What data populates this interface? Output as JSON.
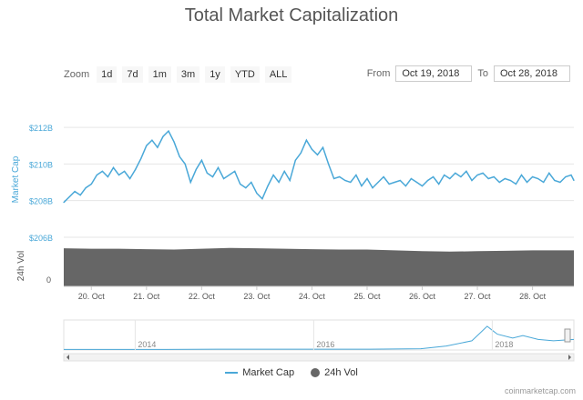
{
  "title": "Total Market Capitalization",
  "zoom": {
    "label": "Zoom",
    "buttons": [
      "1d",
      "7d",
      "1m",
      "3m",
      "1y",
      "YTD",
      "ALL"
    ]
  },
  "range": {
    "from_label": "From",
    "from_value": "Oct 19, 2018",
    "to_label": "To",
    "to_value": "Oct 28, 2018"
  },
  "legend": {
    "market_cap": "Market Cap",
    "vol": "24h Vol"
  },
  "credit": "coinmarketcap.com",
  "colors": {
    "market_cap": "#4aa8d8",
    "volume": "#666666",
    "grid": "#e6e6e6",
    "axis_text": "#4aa8d8"
  },
  "chart_data": {
    "type": "line",
    "title": "Total Market Capitalization",
    "xlabel": "",
    "ylabel": "Market Cap",
    "ylabel2": "24h Vol",
    "x_ticks": [
      "20. Oct",
      "21. Oct",
      "22. Oct",
      "23. Oct",
      "24. Oct",
      "25. Oct",
      "26. Oct",
      "27. Oct",
      "28. Oct"
    ],
    "y_ticks": [
      "$212B",
      "$210B",
      "$208B",
      "$206B"
    ],
    "y_tick_values": [
      212,
      210,
      208,
      206
    ],
    "ylim": [
      205.8,
      212.5
    ],
    "vol_ticks": [
      "0"
    ],
    "x_range": [
      19.5,
      28.75
    ],
    "series": [
      {
        "name": "Market Cap",
        "x": [
          19.5,
          19.6,
          19.7,
          19.8,
          19.9,
          20.0,
          20.1,
          20.2,
          20.3,
          20.4,
          20.5,
          20.6,
          20.7,
          20.8,
          20.9,
          21.0,
          21.1,
          21.2,
          21.3,
          21.4,
          21.5,
          21.6,
          21.7,
          21.8,
          21.9,
          22.0,
          22.1,
          22.2,
          22.3,
          22.4,
          22.5,
          22.6,
          22.7,
          22.8,
          22.9,
          23.0,
          23.1,
          23.2,
          23.3,
          23.4,
          23.5,
          23.6,
          23.7,
          23.8,
          23.9,
          24.0,
          24.1,
          24.2,
          24.3,
          24.4,
          24.5,
          24.6,
          24.7,
          24.8,
          24.9,
          25.0,
          25.1,
          25.2,
          25.3,
          25.4,
          25.5,
          25.6,
          25.7,
          25.8,
          25.9,
          26.0,
          26.1,
          26.2,
          26.3,
          26.4,
          26.5,
          26.6,
          26.7,
          26.8,
          26.9,
          27.0,
          27.1,
          27.2,
          27.3,
          27.4,
          27.5,
          27.6,
          27.7,
          27.8,
          27.9,
          28.0,
          28.1,
          28.2,
          28.3,
          28.4,
          28.5,
          28.6,
          28.7,
          28.75
        ],
        "values": [
          207.9,
          208.2,
          208.5,
          208.3,
          208.7,
          208.9,
          209.4,
          209.6,
          209.3,
          209.8,
          209.4,
          209.6,
          209.2,
          209.7,
          210.3,
          211.0,
          211.3,
          210.9,
          211.5,
          211.8,
          211.2,
          210.4,
          210.0,
          209.0,
          209.7,
          210.2,
          209.5,
          209.3,
          209.8,
          209.2,
          209.4,
          209.6,
          208.9,
          208.7,
          209.0,
          208.4,
          208.1,
          208.8,
          209.4,
          209.0,
          209.6,
          209.1,
          210.2,
          210.6,
          211.3,
          210.8,
          210.5,
          210.9,
          210.0,
          209.2,
          209.3,
          209.1,
          209.0,
          209.4,
          208.8,
          209.2,
          208.7,
          209.0,
          209.3,
          208.9,
          209.0,
          209.1,
          208.8,
          209.2,
          209.0,
          208.8,
          209.1,
          209.3,
          208.9,
          209.4,
          209.2,
          209.5,
          209.3,
          209.6,
          209.1,
          209.4,
          209.5,
          209.2,
          209.3,
          209.0,
          209.2,
          209.1,
          208.9,
          209.4,
          209.0,
          209.3,
          209.2,
          209.0,
          209.5,
          209.1,
          209.0,
          209.3,
          209.4,
          209.1
        ]
      },
      {
        "name": "24h Vol",
        "type": "area",
        "x": [
          19.5,
          20.0,
          20.5,
          21.0,
          21.5,
          22.0,
          22.5,
          23.0,
          23.5,
          24.0,
          24.5,
          25.0,
          25.5,
          26.0,
          26.5,
          27.0,
          27.5,
          28.0,
          28.5,
          28.75
        ],
        "values": [
          0.93,
          0.92,
          0.92,
          0.91,
          0.9,
          0.92,
          0.94,
          0.93,
          0.92,
          0.91,
          0.9,
          0.9,
          0.88,
          0.86,
          0.85,
          0.86,
          0.87,
          0.88,
          0.88,
          0.88
        ]
      }
    ],
    "navigator": {
      "x_ticks": [
        "2014",
        "2016",
        "2018"
      ]
    }
  }
}
